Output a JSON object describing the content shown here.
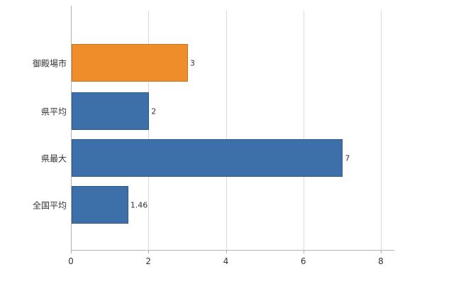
{
  "chart_data": {
    "type": "bar",
    "orientation": "horizontal",
    "title": "",
    "xlabel": "",
    "ylabel": "",
    "categories": [
      "御殿場市",
      "県平均",
      "県最大",
      "全国平均"
    ],
    "values": [
      3,
      2,
      7,
      1.46
    ],
    "value_labels": [
      "3",
      "2",
      "7",
      "1.46"
    ],
    "series": [
      {
        "name": "値",
        "values": [
          3,
          2,
          7,
          1.46
        ],
        "colors": [
          "#ef8d2b",
          "#3d6fa8",
          "#3d6fa8",
          "#3d6fa8"
        ]
      }
    ],
    "xlim": [
      0,
      8.35
    ],
    "x_ticks": [
      0,
      2,
      4,
      6,
      8
    ],
    "x_tick_labels": [
      "0",
      "2",
      "4",
      "6",
      "8"
    ],
    "grid": true,
    "legend_position": "none"
  },
  "colors": {
    "bar_blue": "#3d6fa8",
    "bar_orange": "#ef8d2b",
    "bar_blue_border": "#2f5a8c",
    "bar_orange_border": "#c9741f",
    "grid_line": "#d9d9d9",
    "axis_line": "#b3b3b3",
    "text": "#333333",
    "background": "#ffffff"
  }
}
